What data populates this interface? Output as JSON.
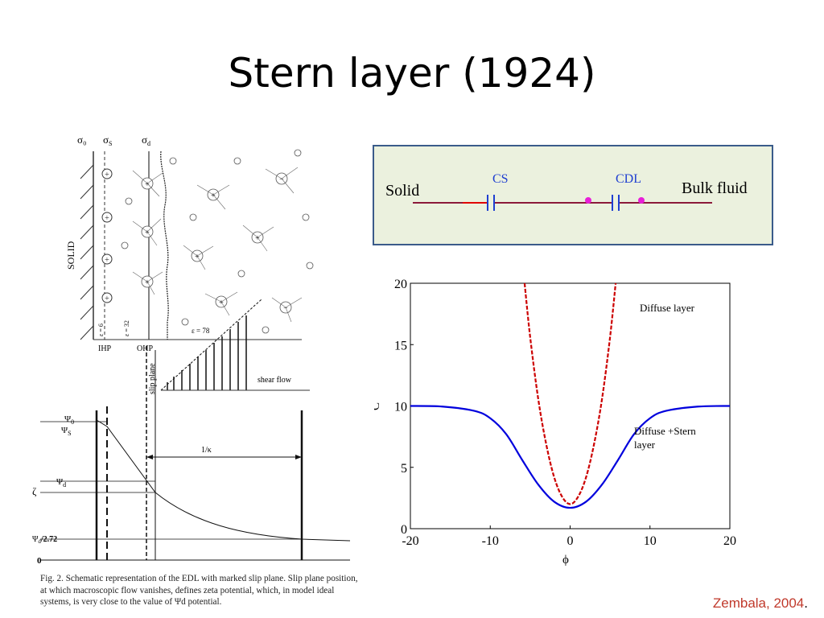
{
  "slide": {
    "title": "Stern layer (1924)"
  },
  "edl_figure": {
    "labels": {
      "sigma0": "σ₀",
      "sigmaS": "σ",
      "sigmaS_sub": "S",
      "sigmaD": "σ",
      "sigmaD_sub": "d",
      "solid": "SOLID",
      "ihp": "IHP",
      "ohp": "OHP",
      "eps6": "ε = 6",
      "eps32": "ε = 32",
      "eps78": "ε = 78",
      "slip_plane": "slip plane",
      "shear_flow": "shear flow",
      "psi0": "Ψ",
      "psi0_sub": "0",
      "psiS": "Ψ",
      "psiS_sub": "S",
      "psiD": "Ψ",
      "psiD_sub": "d",
      "zeta": "ζ",
      "psi_d_272": "Ψ",
      "psi_d_272_sub": "d",
      "psi_d_272_suffix": "/2.72",
      "zero": "0",
      "debye": "1/κ"
    },
    "caption": "Fig. 2. Schematic representation of the EDL with marked slip plane. Slip plane position, at which macroscopic flow vanishes, defines zeta potential, which, in model ideal systems, is very close to the value of Ψd potential."
  },
  "circuit": {
    "solid_label": "Solid",
    "bulk_label": "Bulk fluid",
    "cs_label": "CS",
    "cdl_label": "CDL",
    "colors": {
      "wire": "#8b1a3a",
      "capacitor": "#1f3fd1",
      "node": "#e81fd8",
      "label": "#1f3fd1"
    }
  },
  "chart_data": {
    "type": "line",
    "xlabel": "ϕ",
    "ylabel": "C",
    "xlim": [
      -20,
      20
    ],
    "ylim": [
      0,
      20
    ],
    "xticks": [
      -20,
      -10,
      0,
      10,
      20
    ],
    "yticks": [
      0,
      5,
      10,
      15,
      20
    ],
    "grid": false,
    "series": [
      {
        "name": "Diffuse layer",
        "color": "#cc0000",
        "style": "dashed",
        "x": [
          -5.7,
          -5,
          -4,
          -3,
          -2,
          -1,
          0,
          1,
          2,
          3,
          4,
          5,
          5.7
        ],
        "y": [
          20,
          15.6,
          10.6,
          6.9,
          4.2,
          2.6,
          2.0,
          2.6,
          4.2,
          6.9,
          10.6,
          15.6,
          20
        ]
      },
      {
        "name": "Diffuse +Stern layer",
        "color": "#0000dd",
        "style": "solid",
        "x": [
          -20,
          -16,
          -12,
          -10,
          -8,
          -6,
          -4,
          -2,
          0,
          2,
          4,
          6,
          8,
          10,
          12,
          16,
          20
        ],
        "y": [
          10,
          9.95,
          9.6,
          9.0,
          7.7,
          5.6,
          3.6,
          2.2,
          1.7,
          2.2,
          3.6,
          5.6,
          7.7,
          9.0,
          9.6,
          9.95,
          10
        ]
      }
    ]
  },
  "citation": {
    "text": "Zembala, 2004",
    "suffix": "."
  }
}
